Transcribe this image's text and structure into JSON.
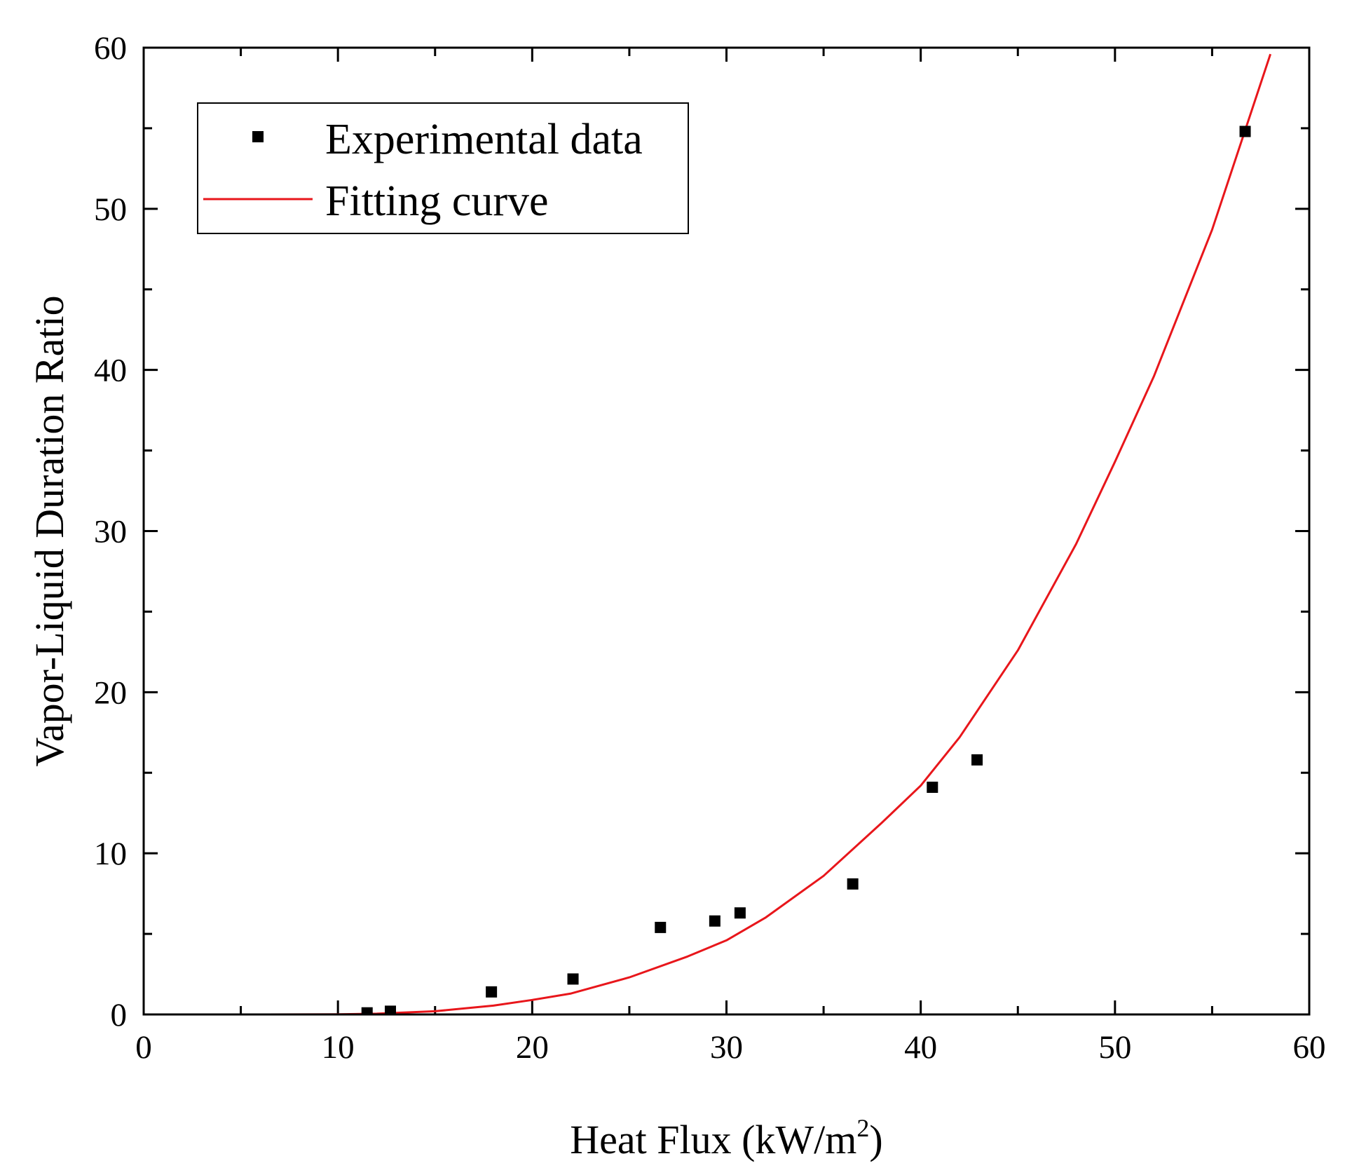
{
  "chart_data": {
    "type": "scatter",
    "xlabel": "Heat Flux (kW/m",
    "xlabel_sup": "2",
    "xlabel_close": ")",
    "ylabel": "Vapor-Liquid Duration Ratio",
    "xlim": [
      0,
      60
    ],
    "ylim": [
      0,
      60
    ],
    "x_ticks": [
      "0",
      "10",
      "20",
      "30",
      "40",
      "50",
      "60"
    ],
    "y_ticks": [
      "0",
      "10",
      "20",
      "30",
      "40",
      "50",
      "60"
    ],
    "grid": false,
    "legend_position": "top-left",
    "series": [
      {
        "name": "Experimental data",
        "kind": "scatter",
        "marker": "square",
        "color": "#000000",
        "x": [
          11.5,
          12.7,
          17.9,
          22.1,
          26.6,
          29.4,
          30.7,
          36.5,
          40.6,
          42.9,
          56.7
        ],
        "y": [
          0.1,
          0.2,
          1.4,
          2.2,
          5.4,
          5.8,
          6.3,
          8.1,
          14.1,
          15.8,
          54.8
        ]
      },
      {
        "name": "Fitting curve",
        "kind": "line",
        "color": "#e8161b",
        "x": [
          0,
          5,
          10,
          12,
          15,
          18,
          20,
          22,
          25,
          28,
          30,
          32,
          35,
          38,
          40,
          42,
          45,
          48,
          50,
          52,
          55,
          58
        ],
        "y": [
          0,
          0,
          0.01,
          0.05,
          0.2,
          0.55,
          0.9,
          1.3,
          2.3,
          3.6,
          4.6,
          6.0,
          8.6,
          11.9,
          14.2,
          17.2,
          22.6,
          29.2,
          34.3,
          39.6,
          48.7,
          59.6
        ]
      }
    ]
  }
}
